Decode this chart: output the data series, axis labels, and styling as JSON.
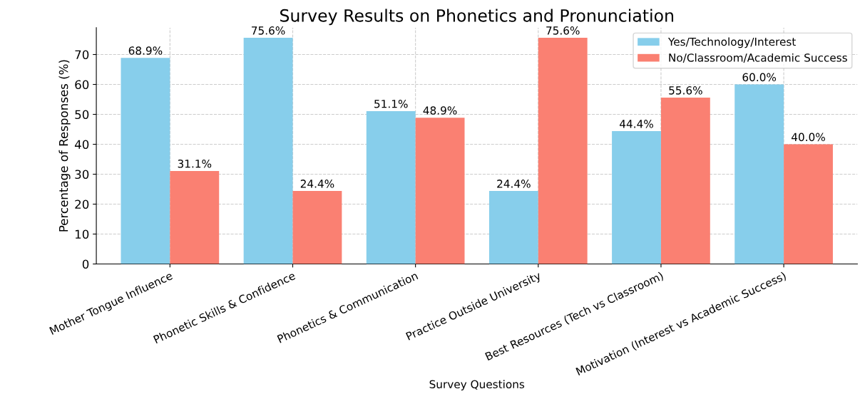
{
  "chart_data": {
    "type": "bar",
    "title": "Survey Results on Phonetics and Pronunciation",
    "xlabel": "Survey Questions",
    "ylabel": "Percentage of Responses (%)",
    "categories": [
      "Mother Tongue Influence",
      "Phonetic Skills & Confidence",
      "Phonetics & Communication",
      "Practice Outside University",
      "Best Resources (Tech vs Classroom)",
      "Motivation (Interest vs Academic Success)"
    ],
    "series": [
      {
        "name": "Yes/Technology/Interest",
        "color": "#87ceeb",
        "values": [
          68.9,
          75.6,
          51.1,
          24.4,
          44.4,
          60.0
        ],
        "value_labels": [
          "68.9%",
          "75.6%",
          "51.1%",
          "24.4%",
          "44.4%",
          "60.0%"
        ]
      },
      {
        "name": "No/Classroom/Academic Success",
        "color": "#fa8072",
        "values": [
          31.1,
          24.4,
          48.9,
          75.6,
          55.6,
          40.0
        ],
        "value_labels": [
          "31.1%",
          "24.4%",
          "48.9%",
          "75.6%",
          "55.6%",
          "40.0%"
        ]
      }
    ],
    "ylim": [
      0,
      79
    ],
    "yticks": [
      0,
      10,
      20,
      30,
      40,
      50,
      60,
      70
    ],
    "grid": true,
    "legend": "top right"
  }
}
